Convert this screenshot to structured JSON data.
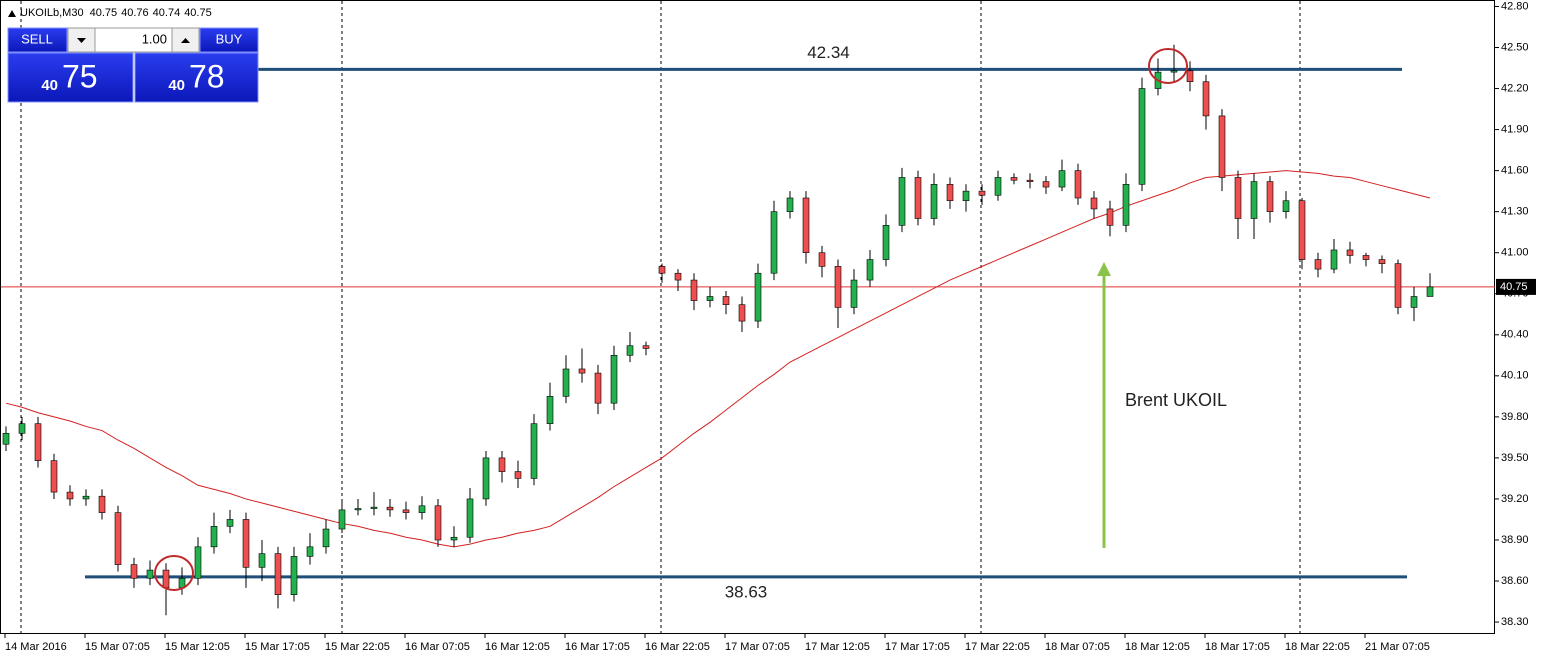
{
  "chart_data": {
    "type": "candlestick",
    "symbol": "UKOILb,M30",
    "header_prices": [
      40.75,
      40.76,
      40.74,
      40.75
    ],
    "trade_panel": {
      "sell": "SELL",
      "buy": "BUY",
      "volume": "1.00",
      "bid_big": "40",
      "bid_small": "75",
      "ask_big": "40",
      "ask_small": "78"
    },
    "annotation": "Brent UKOIL",
    "levels": [
      42.34,
      38.63
    ],
    "last_price": 40.75,
    "bull_color": "#22b14c",
    "bear_color": "#ed4e4e",
    "level_color": "#1f4e79",
    "ma_color": "#d42020",
    "categories": [
      "14 Mar 2016",
      null,
      null,
      null,
      null,
      "15 Mar 07:05",
      null,
      null,
      null,
      null,
      "15 Mar 12:05",
      null,
      null,
      null,
      null,
      "15 Mar 17:05",
      null,
      null,
      null,
      null,
      "15 Mar 22:05",
      null,
      null,
      null,
      null,
      "16 Mar 07:05",
      null,
      null,
      null,
      null,
      "16 Mar 12:05",
      null,
      null,
      null,
      null,
      "16 Mar 17:05",
      null,
      null,
      null,
      null,
      "16 Mar 22:05",
      null,
      null,
      null,
      null,
      "17 Mar 07:05",
      null,
      null,
      null,
      null,
      "17 Mar 12:05",
      null,
      null,
      null,
      null,
      "17 Mar 17:05",
      null,
      null,
      null,
      null,
      "17 Mar 22:05",
      null,
      null,
      null,
      null,
      "18 Mar 07:05",
      null,
      null,
      null,
      null,
      "18 Mar 12:05",
      null,
      null,
      null,
      null,
      "18 Mar 17:05",
      null,
      null,
      null,
      null,
      "18 Mar 22:05",
      null,
      null,
      null,
      null,
      "21 Mar 07:05",
      null,
      null,
      null,
      null
    ],
    "open": [
      39.6,
      39.68,
      39.75,
      39.48,
      39.25,
      39.2,
      39.22,
      39.1,
      38.72,
      38.62,
      38.68,
      38.55,
      38.62,
      38.85,
      39.0,
      39.05,
      38.7,
      38.8,
      38.5,
      38.78,
      38.85,
      38.98,
      39.12,
      39.13,
      39.14,
      39.12,
      39.1,
      39.15,
      38.9,
      38.92,
      39.2,
      39.5,
      39.4,
      39.35,
      39.75,
      39.95,
      40.15,
      40.12,
      39.9,
      40.25,
      40.32,
      40.9,
      40.85,
      40.8,
      40.65,
      40.68,
      40.62,
      40.5,
      40.85,
      41.3,
      41.4,
      41.0,
      40.9,
      40.6,
      40.8,
      40.95,
      41.2,
      41.55,
      41.25,
      41.5,
      41.38,
      41.45,
      41.42,
      41.55,
      41.53,
      41.52,
      41.48,
      41.6,
      41.4,
      41.32,
      41.2,
      41.5,
      42.2,
      42.32,
      42.33,
      42.25,
      42.0,
      41.55,
      41.25,
      41.52,
      41.3,
      41.38,
      40.95,
      40.88,
      41.02,
      40.98,
      40.95,
      40.92,
      40.6,
      40.68
    ],
    "high": [
      39.73,
      39.8,
      39.8,
      39.53,
      39.3,
      39.27,
      39.27,
      39.15,
      38.77,
      38.75,
      38.73,
      38.7,
      38.92,
      39.1,
      39.12,
      39.1,
      38.9,
      38.85,
      38.85,
      38.95,
      39.05,
      39.18,
      39.2,
      39.25,
      39.2,
      39.18,
      39.22,
      39.2,
      39.0,
      39.28,
      39.55,
      39.55,
      39.48,
      39.82,
      40.05,
      40.25,
      40.3,
      40.18,
      40.32,
      40.42,
      40.35,
      40.92,
      40.88,
      40.85,
      40.75,
      40.72,
      40.68,
      40.92,
      41.38,
      41.45,
      41.45,
      41.05,
      40.95,
      40.88,
      41.02,
      41.28,
      41.62,
      41.6,
      41.58,
      41.55,
      41.5,
      41.5,
      41.6,
      41.58,
      41.58,
      41.56,
      41.68,
      41.65,
      41.45,
      41.38,
      41.58,
      42.28,
      42.42,
      42.52,
      42.4,
      42.3,
      42.05,
      41.6,
      41.58,
      41.56,
      41.45,
      41.4,
      41.0,
      41.1,
      41.08,
      41.0,
      40.98,
      40.95,
      40.75,
      40.85
    ],
    "low": [
      39.55,
      39.63,
      39.43,
      39.2,
      39.15,
      39.15,
      39.05,
      38.67,
      38.55,
      38.57,
      38.35,
      38.5,
      38.57,
      38.8,
      38.95,
      38.55,
      38.6,
      38.4,
      38.45,
      38.72,
      38.8,
      38.95,
      39.08,
      39.08,
      39.07,
      39.05,
      39.05,
      38.85,
      38.85,
      38.88,
      39.15,
      39.32,
      39.28,
      39.3,
      39.7,
      39.9,
      40.05,
      39.82,
      39.85,
      40.2,
      40.25,
      40.78,
      40.72,
      40.58,
      40.6,
      40.55,
      40.42,
      40.45,
      40.8,
      41.25,
      40.92,
      40.82,
      40.45,
      40.55,
      40.75,
      40.9,
      41.15,
      41.2,
      41.2,
      41.32,
      41.3,
      41.35,
      41.38,
      41.5,
      41.47,
      41.43,
      41.45,
      41.35,
      41.25,
      41.12,
      41.15,
      41.45,
      42.15,
      42.25,
      42.18,
      41.9,
      41.45,
      41.1,
      41.1,
      41.22,
      41.25,
      40.88,
      40.82,
      40.85,
      40.92,
      40.9,
      40.85,
      40.55,
      40.5,
      40.7
    ],
    "close": [
      39.68,
      39.75,
      39.48,
      39.25,
      39.2,
      39.22,
      39.1,
      38.72,
      38.62,
      38.68,
      38.55,
      38.62,
      38.85,
      39.0,
      39.05,
      38.7,
      38.8,
      38.5,
      38.78,
      38.85,
      38.98,
      39.12,
      39.13,
      39.14,
      39.12,
      39.1,
      39.15,
      38.9,
      38.92,
      39.2,
      39.5,
      39.4,
      39.35,
      39.75,
      39.95,
      40.15,
      40.12,
      39.9,
      40.25,
      40.32,
      40.3,
      40.85,
      40.8,
      40.65,
      40.68,
      40.62,
      40.5,
      40.85,
      41.3,
      41.4,
      41.0,
      40.9,
      40.6,
      40.8,
      40.95,
      41.2,
      41.55,
      41.25,
      41.5,
      41.38,
      41.45,
      41.42,
      41.55,
      41.53,
      41.52,
      41.48,
      41.6,
      41.4,
      41.32,
      41.2,
      41.5,
      42.2,
      42.32,
      42.33,
      42.25,
      42.0,
      41.55,
      41.25,
      41.52,
      41.3,
      41.38,
      40.95,
      40.88,
      41.02,
      40.98,
      40.95,
      40.92,
      40.6,
      40.68,
      40.75
    ],
    "ma": [
      39.9,
      39.87,
      39.83,
      39.8,
      39.77,
      39.73,
      39.7,
      39.63,
      39.57,
      39.5,
      39.43,
      39.37,
      39.3,
      39.27,
      39.24,
      39.2,
      39.17,
      39.14,
      39.11,
      39.08,
      39.05,
      39.02,
      39.0,
      38.97,
      38.95,
      38.92,
      38.9,
      38.87,
      38.85,
      38.87,
      38.9,
      38.92,
      38.95,
      38.97,
      39.0,
      39.07,
      39.14,
      39.21,
      39.29,
      39.36,
      39.43,
      39.5,
      39.59,
      39.68,
      39.76,
      39.85,
      39.94,
      40.03,
      40.11,
      40.2,
      40.26,
      40.32,
      40.38,
      40.44,
      40.5,
      40.56,
      40.62,
      40.68,
      40.74,
      40.8,
      40.85,
      40.9,
      40.95,
      41.0,
      41.05,
      41.1,
      41.15,
      41.2,
      41.25,
      41.29,
      41.34,
      41.38,
      41.42,
      41.46,
      41.51,
      41.55,
      41.56,
      41.57,
      41.58,
      41.59,
      41.6,
      41.59,
      41.58,
      41.56,
      41.55,
      41.52,
      41.49,
      41.46,
      41.43,
      41.4
    ],
    "ylim": [
      38.22,
      42.84
    ],
    "yticks": [
      {
        "value": 42.8,
        "label": "42.80"
      },
      {
        "value": 42.5,
        "label": "42.50"
      },
      {
        "value": 42.2,
        "label": "42.20"
      },
      {
        "value": 41.9,
        "label": "41.90"
      },
      {
        "value": 41.6,
        "label": "41.60"
      },
      {
        "value": 41.3,
        "label": "41.30"
      },
      {
        "value": 41.0,
        "label": "41.00"
      },
      {
        "value": 40.7,
        "label": "40.70"
      },
      {
        "value": 40.4,
        "label": "40.40"
      },
      {
        "value": 40.1,
        "label": "40.10"
      },
      {
        "value": 39.8,
        "label": "39.80"
      },
      {
        "value": 39.5,
        "label": "39.50"
      },
      {
        "value": 39.2,
        "label": "39.20"
      },
      {
        "value": 38.9,
        "label": "38.90"
      },
      {
        "value": 38.6,
        "label": "38.60"
      },
      {
        "value": 38.3,
        "label": "38.30"
      }
    ]
  }
}
